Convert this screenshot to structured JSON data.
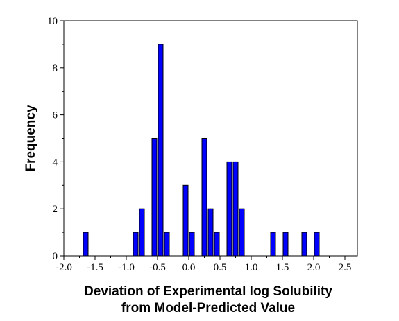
{
  "chart_data": {
    "type": "bar",
    "title": "",
    "xlabel_lines": [
      "Deviation of Experimental log Solubility",
      "from Model-Predicted Value"
    ],
    "ylabel": "Frequency",
    "bar_width": 0.1,
    "bars": [
      {
        "x": -1.7,
        "y": 1
      },
      {
        "x": -0.9,
        "y": 1
      },
      {
        "x": -0.8,
        "y": 2
      },
      {
        "x": -0.6,
        "y": 5
      },
      {
        "x": -0.5,
        "y": 9
      },
      {
        "x": -0.4,
        "y": 1
      },
      {
        "x": -0.1,
        "y": 3
      },
      {
        "x": 0.0,
        "y": 1
      },
      {
        "x": 0.2,
        "y": 5
      },
      {
        "x": 0.3,
        "y": 2
      },
      {
        "x": 0.4,
        "y": 1
      },
      {
        "x": 0.6,
        "y": 4
      },
      {
        "x": 0.7,
        "y": 4
      },
      {
        "x": 0.8,
        "y": 2
      },
      {
        "x": 1.3,
        "y": 1
      },
      {
        "x": 1.5,
        "y": 1
      },
      {
        "x": 1.8,
        "y": 1
      },
      {
        "x": 2.0,
        "y": 1
      }
    ],
    "xlim": [
      -2.0,
      2.7
    ],
    "ylim": [
      0,
      10
    ],
    "xticks": [
      -2.0,
      -1.5,
      -1.0,
      -0.5,
      0.0,
      0.5,
      1.0,
      1.5,
      2.0,
      2.5
    ],
    "xtick_labels": [
      "-2.0",
      "-1.5",
      "-1.0",
      "-0.5",
      "0.0",
      "0.5",
      "1.0",
      "1.5",
      "2.0",
      "2.5"
    ],
    "yticks": [
      0,
      2,
      4,
      6,
      8,
      10
    ],
    "ytick_labels": [
      "0",
      "2",
      "4",
      "6",
      "8",
      "10"
    ],
    "grid": false,
    "legend": "none",
    "colors": {
      "bar_fill": "#0000ff",
      "bar_stroke": "#000000",
      "axis": "#000000"
    }
  }
}
